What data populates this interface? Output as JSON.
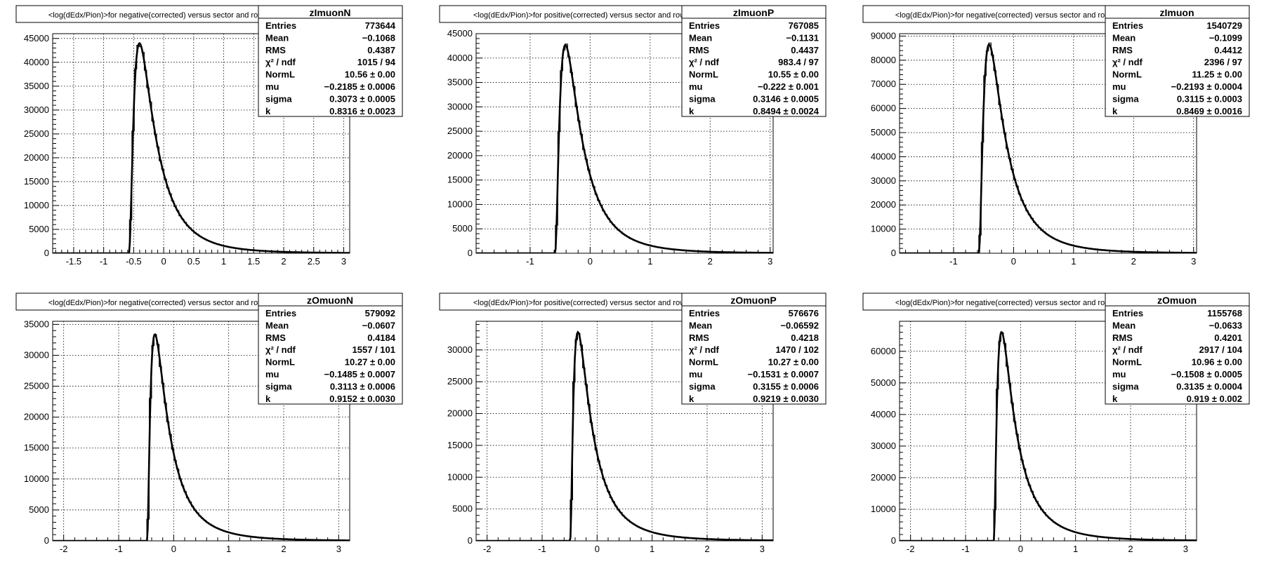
{
  "colors": {
    "background": "#ffffff",
    "ink": "#000000",
    "grid": "#000000"
  },
  "chart_data": [
    {
      "type": "line",
      "title": "<log(dEdx/Pion)>for negative(corrected) versus sector and row",
      "name": "zImuonN",
      "xlim": [
        -1.85,
        3.1
      ],
      "ylim": [
        0,
        46000
      ],
      "xticks": [
        -1.5,
        -1,
        -0.5,
        0,
        0.5,
        1,
        1.5,
        2,
        2.5,
        3
      ],
      "xtick_labels": [
        "-1.5",
        "-1",
        "-0.5",
        "0",
        "0.5",
        "1",
        "1.5",
        "2",
        "2.5",
        "3"
      ],
      "yticks": [
        0,
        5000,
        10000,
        15000,
        20000,
        25000,
        30000,
        35000,
        40000,
        45000
      ],
      "grid": true,
      "fit": {
        "mu": -0.2185,
        "sigma": 0.3073,
        "k": 0.8316,
        "peak": 44000
      },
      "stats": [
        {
          "label": "Entries",
          "value": "773644"
        },
        {
          "label": "Mean",
          "value": "−0.1068"
        },
        {
          "label": "RMS",
          "value": "0.4387"
        },
        {
          "label": "χ² / ndf",
          "value": "1015 / 94"
        },
        {
          "label": "NormL",
          "value": "10.56 ± 0.00"
        },
        {
          "label": "mu",
          "value": "−0.2185 ± 0.0006"
        },
        {
          "label": "sigma",
          "value": "0.3073 ± 0.0005"
        },
        {
          "label": "k",
          "value": "0.8316 ± 0.0023"
        }
      ]
    },
    {
      "type": "line",
      "title": "<log(dEdx/Pion)>for positive(corrected) versus sector and row",
      "name": "zImuonP",
      "xlim": [
        -1.9,
        3.05
      ],
      "ylim": [
        0,
        45000
      ],
      "xticks": [
        -1,
        0,
        1,
        2,
        3
      ],
      "xtick_labels": [
        "-1",
        "0",
        "1",
        "2",
        "3"
      ],
      "yticks": [
        0,
        5000,
        10000,
        15000,
        20000,
        25000,
        30000,
        35000,
        40000,
        45000
      ],
      "grid": true,
      "fit": {
        "mu": -0.222,
        "sigma": 0.3146,
        "k": 0.8494,
        "peak": 42700
      },
      "stats": [
        {
          "label": "Entries",
          "value": "767085"
        },
        {
          "label": "Mean",
          "value": "−0.1131"
        },
        {
          "label": "RMS",
          "value": "0.4437"
        },
        {
          "label": "χ² / ndf",
          "value": "983.4 / 97"
        },
        {
          "label": "NormL",
          "value": "10.55 ± 0.00"
        },
        {
          "label": "mu",
          "value": "−0.222 ± 0.001"
        },
        {
          "label": "sigma",
          "value": "0.3146 ± 0.0005"
        },
        {
          "label": "k",
          "value": "0.8494 ± 0.0024"
        }
      ]
    },
    {
      "type": "line",
      "title": "<log(dEdx/Pion)>for negative(corrected) versus sector and row",
      "name": "zImuon",
      "xlim": [
        -1.9,
        3.05
      ],
      "ylim": [
        0,
        91000
      ],
      "xticks": [
        -1,
        0,
        1,
        2,
        3
      ],
      "xtick_labels": [
        "-1",
        "0",
        "1",
        "2",
        "3"
      ],
      "yticks": [
        0,
        10000,
        20000,
        30000,
        40000,
        50000,
        60000,
        70000,
        80000,
        90000
      ],
      "grid": true,
      "fit": {
        "mu": -0.2193,
        "sigma": 0.3115,
        "k": 0.8469,
        "peak": 86500
      },
      "stats": [
        {
          "label": "Entries",
          "value": "1540729"
        },
        {
          "label": "Mean",
          "value": "−0.1099"
        },
        {
          "label": "RMS",
          "value": "0.4412"
        },
        {
          "label": "χ² / ndf",
          "value": "2396 / 97"
        },
        {
          "label": "NormL",
          "value": "11.25 ± 0.00"
        },
        {
          "label": "mu",
          "value": "−0.2193 ± 0.0004"
        },
        {
          "label": "sigma",
          "value": "0.3115 ± 0.0003"
        },
        {
          "label": "k",
          "value": "0.8469 ± 0.0016"
        }
      ]
    },
    {
      "type": "line",
      "title": "<log(dEdx/Pion)>for negative(corrected) versus sector and row",
      "name": "zOmuonN",
      "xlim": [
        -2.2,
        3.2
      ],
      "ylim": [
        0,
        35500
      ],
      "xticks": [
        -2,
        -1,
        0,
        1,
        2,
        3
      ],
      "xtick_labels": [
        "-2",
        "-1",
        "0",
        "1",
        "2",
        "3"
      ],
      "yticks": [
        0,
        5000,
        10000,
        15000,
        20000,
        25000,
        30000,
        35000
      ],
      "grid": true,
      "fit": {
        "mu": -0.1485,
        "sigma": 0.3113,
        "k": 0.9152,
        "peak": 33400
      },
      "stats": [
        {
          "label": "Entries",
          "value": "579092"
        },
        {
          "label": "Mean",
          "value": "−0.0607"
        },
        {
          "label": "RMS",
          "value": "0.4184"
        },
        {
          "label": "χ² / ndf",
          "value": "1557 / 101"
        },
        {
          "label": "NormL",
          "value": "10.27 ± 0.00"
        },
        {
          "label": "mu",
          "value": "−0.1485 ± 0.0007"
        },
        {
          "label": "sigma",
          "value": "0.3113 ± 0.0006"
        },
        {
          "label": "k",
          "value": "0.9152 ± 0.0030"
        }
      ]
    },
    {
      "type": "line",
      "title": "<log(dEdx/Pion)>for positive(corrected) versus sector and row",
      "name": "zOmuonP",
      "xlim": [
        -2.2,
        3.2
      ],
      "ylim": [
        0,
        34500
      ],
      "xticks": [
        -2,
        -1,
        0,
        1,
        2,
        3
      ],
      "xtick_labels": [
        "-2",
        "-1",
        "0",
        "1",
        "2",
        "3"
      ],
      "yticks": [
        0,
        5000,
        10000,
        15000,
        20000,
        25000,
        30000
      ],
      "grid": true,
      "fit": {
        "mu": -0.1531,
        "sigma": 0.3155,
        "k": 0.9219,
        "peak": 32800
      },
      "stats": [
        {
          "label": "Entries",
          "value": "576676"
        },
        {
          "label": "Mean",
          "value": "−0.06592"
        },
        {
          "label": "RMS",
          "value": "0.4218"
        },
        {
          "label": "χ² / ndf",
          "value": "1470 / 102"
        },
        {
          "label": "NormL",
          "value": "10.27 ± 0.00"
        },
        {
          "label": "mu",
          "value": "−0.1531 ± 0.0007"
        },
        {
          "label": "sigma",
          "value": "0.3155 ± 0.0006"
        },
        {
          "label": "k",
          "value": "0.9219 ± 0.0030"
        }
      ]
    },
    {
      "type": "line",
      "title": "<log(dEdx/Pion)>for negative(corrected) versus sector and row",
      "name": "zOmuon",
      "xlim": [
        -2.2,
        3.2
      ],
      "ylim": [
        0,
        69500
      ],
      "xticks": [
        -2,
        -1,
        0,
        1,
        2,
        3
      ],
      "xtick_labels": [
        "-2",
        "-1",
        "0",
        "1",
        "2",
        "3"
      ],
      "yticks": [
        0,
        10000,
        20000,
        30000,
        40000,
        50000,
        60000
      ],
      "grid": true,
      "fit": {
        "mu": -0.1508,
        "sigma": 0.3135,
        "k": 0.919,
        "peak": 66100
      },
      "stats": [
        {
          "label": "Entries",
          "value": "1155768"
        },
        {
          "label": "Mean",
          "value": "−0.0633"
        },
        {
          "label": "RMS",
          "value": "0.4201"
        },
        {
          "label": "χ² / ndf",
          "value": "2917 / 104"
        },
        {
          "label": "NormL",
          "value": "10.96 ± 0.00"
        },
        {
          "label": "mu",
          "value": "−0.1508 ± 0.0005"
        },
        {
          "label": "sigma",
          "value": "0.3135 ± 0.0004"
        },
        {
          "label": "k",
          "value": "0.919 ± 0.002"
        }
      ]
    }
  ]
}
